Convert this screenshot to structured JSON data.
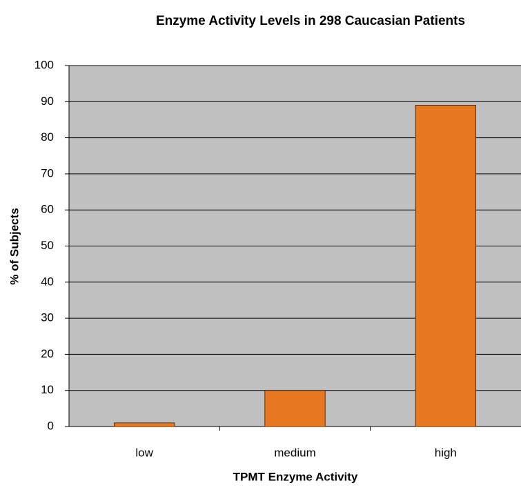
{
  "chart_data": {
    "type": "bar",
    "title": "Enzyme Activity Levels in 298 Caucasian Patients",
    "x_label": "TPMT Enzyme Activity",
    "y_label": "% of Subjects",
    "categories": [
      "low",
      "medium",
      "high"
    ],
    "values": [
      1,
      10,
      89
    ],
    "color": "#e87722",
    "ylim": [
      0,
      100
    ],
    "yticks": [
      0,
      10,
      20,
      30,
      40,
      50,
      60,
      70,
      80,
      90,
      100
    ],
    "grid": true
  }
}
